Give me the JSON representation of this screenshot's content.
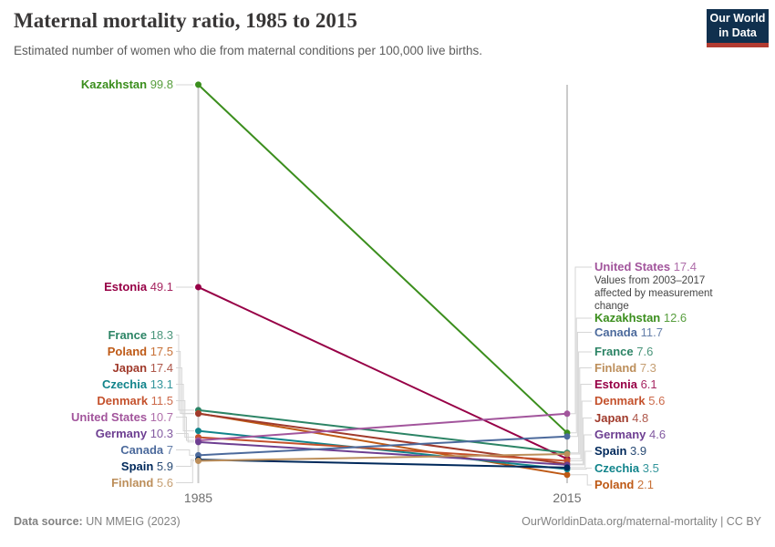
{
  "header": {
    "title": "Maternal mortality ratio, 1985 to 2015",
    "subtitle": "Estimated number of women who die from maternal conditions per 100,000 live births.",
    "logo": {
      "line1": "Our World",
      "line2": "in Data",
      "bg_color": "#10304E",
      "accent_color": "#B23B31"
    }
  },
  "chart_data": {
    "type": "line",
    "subtype": "slope-chart",
    "x": [
      1985,
      2015
    ],
    "x_labels": [
      "1985",
      "2015"
    ],
    "ylim": [
      0,
      100
    ],
    "grid": false,
    "legend_position": "labels-at-line-ends",
    "series": [
      {
        "name": "Kazakhstan",
        "color": "#3B8E1D",
        "values": [
          99.8,
          12.6
        ]
      },
      {
        "name": "Estonia",
        "color": "#970046",
        "values": [
          49.1,
          6.1
        ]
      },
      {
        "name": "France",
        "color": "#2C8465",
        "values": [
          18.3,
          7.6
        ]
      },
      {
        "name": "Poland",
        "color": "#BE5915",
        "values": [
          17.5,
          2.1
        ]
      },
      {
        "name": "Japan",
        "color": "#A03A2B",
        "values": [
          17.4,
          4.8
        ]
      },
      {
        "name": "Czechia",
        "color": "#11848B",
        "values": [
          13.1,
          3.5
        ]
      },
      {
        "name": "Denmark",
        "color": "#C4512C",
        "values": [
          11.5,
          5.6
        ]
      },
      {
        "name": "United States",
        "color": "#A2559C",
        "values": [
          10.7,
          17.4
        ]
      },
      {
        "name": "Germany",
        "color": "#6D3E91",
        "values": [
          10.3,
          4.6
        ]
      },
      {
        "name": "Canada",
        "color": "#4C6A9C",
        "values": [
          7,
          11.7
        ]
      },
      {
        "name": "Spain",
        "color": "#00295B",
        "values": [
          5.9,
          3.9
        ]
      },
      {
        "name": "Finland",
        "color": "#BC8E5A",
        "values": [
          5.6,
          7.3
        ]
      }
    ],
    "annotation": "Values from 2003–2017 affected by measurement change",
    "annotation_applies_to": "United States"
  },
  "footer": {
    "source_label": "Data source:",
    "source_text": " UN MMEIG (2023)",
    "right": "OurWorldinData.org/maternal-mortality | CC BY"
  }
}
